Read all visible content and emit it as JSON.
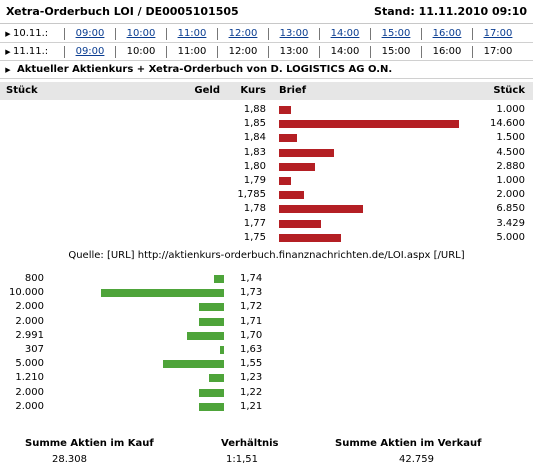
{
  "header": {
    "title": "Xetra-Orderbuch LOI / DE0005101505",
    "stand": "Stand: 11.11.2010 09:10"
  },
  "time_rows": [
    {
      "date": "10.11.:",
      "slots": [
        {
          "label": "09:00",
          "link": true
        },
        {
          "label": "10:00",
          "link": true
        },
        {
          "label": "11:00",
          "link": true
        },
        {
          "label": "12:00",
          "link": true
        },
        {
          "label": "13:00",
          "link": true
        },
        {
          "label": "14:00",
          "link": true
        },
        {
          "label": "15:00",
          "link": true
        },
        {
          "label": "16:00",
          "link": true
        },
        {
          "label": "17:00",
          "link": true
        }
      ]
    },
    {
      "date": "11.11.:",
      "slots": [
        {
          "label": "09:00",
          "link": true
        },
        {
          "label": "10:00",
          "link": false
        },
        {
          "label": "11:00",
          "link": false
        },
        {
          "label": "12:00",
          "link": false
        },
        {
          "label": "13:00",
          "link": false
        },
        {
          "label": "14:00",
          "link": false
        },
        {
          "label": "15:00",
          "link": false
        },
        {
          "label": "16:00",
          "link": false
        },
        {
          "label": "17:00",
          "link": false
        }
      ]
    }
  ],
  "info_bar": "Aktueller Aktienkurs + Xetra-Orderbuch von D. LOGISTICS AG O.N.",
  "columns": {
    "stueck_left": "Stück",
    "geld": "Geld",
    "kurs": "Kurs",
    "brief": "Brief",
    "stueck_right": "Stück"
  },
  "sell_orders": [
    {
      "kurs": "1,88",
      "stueck": "1.000",
      "qty": 1000
    },
    {
      "kurs": "1,85",
      "stueck": "14.600",
      "qty": 14600
    },
    {
      "kurs": "1,84",
      "stueck": "1.500",
      "qty": 1500
    },
    {
      "kurs": "1,83",
      "stueck": "4.500",
      "qty": 4500
    },
    {
      "kurs": "1,80",
      "stueck": "2.880",
      "qty": 2880
    },
    {
      "kurs": "1,79",
      "stueck": "1.000",
      "qty": 1000
    },
    {
      "kurs": "1,785",
      "stueck": "2.000",
      "qty": 2000
    },
    {
      "kurs": "1,78",
      "stueck": "6.850",
      "qty": 6850
    },
    {
      "kurs": "1,77",
      "stueck": "3.429",
      "qty": 3429
    },
    {
      "kurs": "1,75",
      "stueck": "5.000",
      "qty": 5000
    }
  ],
  "source": "Quelle: [URL] http://aktienkurs-orderbuch.finanznachrichten.de/LOI.aspx [/URL]",
  "buy_orders": [
    {
      "stueck": "800",
      "kurs": "1,74",
      "qty": 800
    },
    {
      "stueck": "10.000",
      "kurs": "1,73",
      "qty": 10000
    },
    {
      "stueck": "2.000",
      "kurs": "1,72",
      "qty": 2000
    },
    {
      "stueck": "2.000",
      "kurs": "1,71",
      "qty": 2000
    },
    {
      "stueck": "2.991",
      "kurs": "1,70",
      "qty": 2991
    },
    {
      "stueck": "307",
      "kurs": "1,63",
      "qty": 307
    },
    {
      "stueck": "5.000",
      "kurs": "1,55",
      "qty": 5000
    },
    {
      "stueck": "1.210",
      "kurs": "1,23",
      "qty": 1210
    },
    {
      "stueck": "2.000",
      "kurs": "1,22",
      "qty": 2000
    },
    {
      "stueck": "2.000",
      "kurs": "1,21",
      "qty": 2000
    }
  ],
  "summary": {
    "kauf_label": "Summe Aktien im Kauf",
    "kauf_value": "28.308",
    "verhaeltnis_label": "Verhältnis",
    "verhaeltnis_value": "1:1,51",
    "verkauf_label": "Summe Aktien im Verkauf",
    "verkauf_value": "42.759"
  },
  "colors": {
    "sell_bar": "#b41f24",
    "buy_bar": "#4ea43a",
    "link": "#0a3d91",
    "header_bg": "#e6e6e6"
  }
}
